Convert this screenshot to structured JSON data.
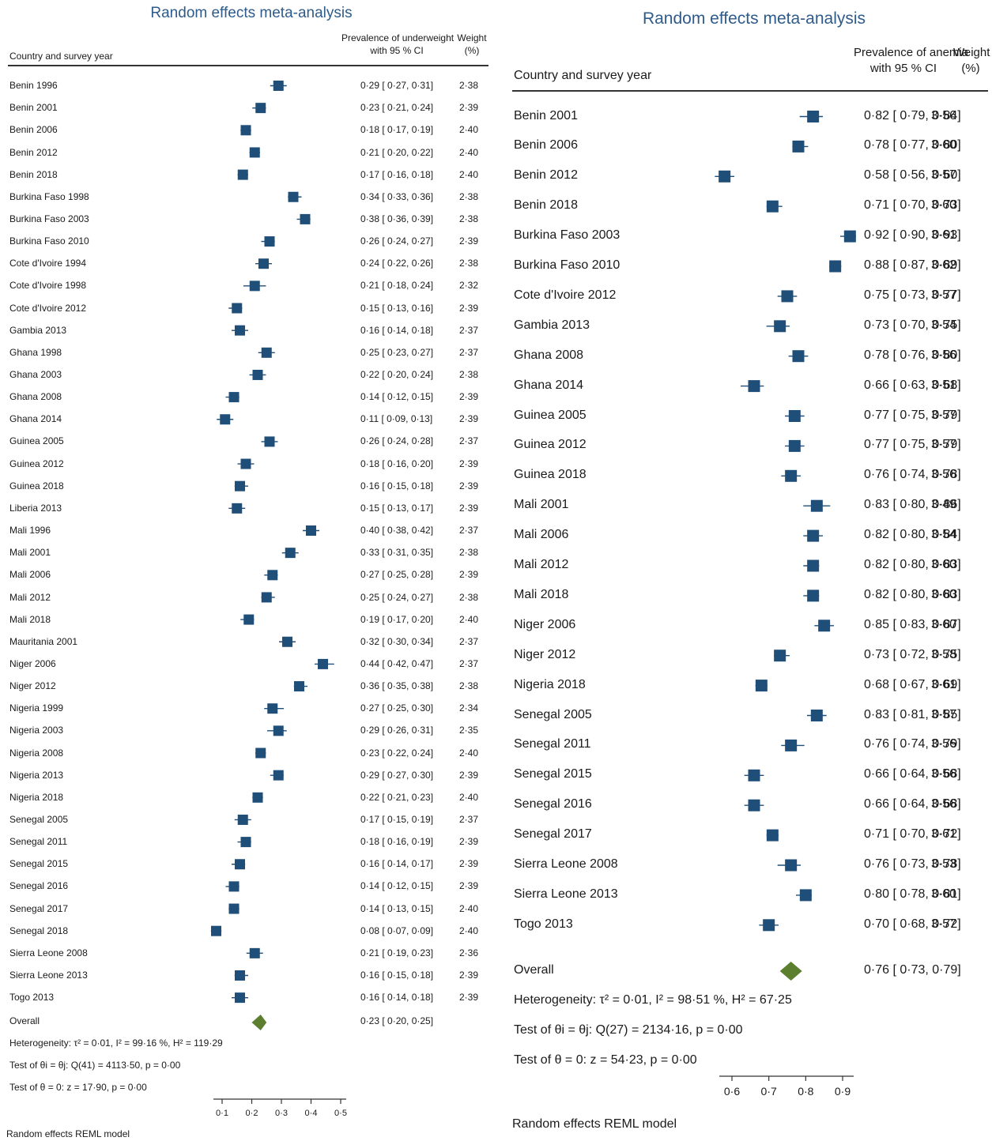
{
  "colors": {
    "marker": "#1f4e79",
    "diamond": "#5b7f2e",
    "title": "#2e5b8a",
    "text": "#1a1a1a"
  },
  "left": {
    "title": "Random effects meta-analysis",
    "col_country": "Country and survey year",
    "col_prev_1": "Prevalence of underweight",
    "col_prev_2": "with 95 % CI",
    "col_weight_1": "Weight",
    "col_weight_2": "(%)",
    "overall_label": "Overall",
    "overall_ci": "0·23 [ 0·20, 0·25]",
    "heterogeneity": "Heterogeneity: τ² = 0·01, I² = 99·16 %, H² = 119·29",
    "test1": "Test of θi = θj: Q(41) = 4113·50, p = 0·00",
    "test2": "Test of θ = 0: z = 17·90, p = 0·00",
    "model": "Random effects REML model",
    "ticks": [
      "0·1",
      "0·2",
      "0·3",
      "0·4",
      "0·5"
    ]
  },
  "right": {
    "title": "Random effects meta-analysis",
    "col_country": "Country and survey year",
    "col_prev_1": "Prevalence of anemia",
    "col_prev_2": "with 95 % CI",
    "col_weight_1": "Weight",
    "col_weight_2": "(%)",
    "overall_label": "Overall",
    "overall_ci": "0·76 [ 0·73, 0·79]",
    "heterogeneity": "Heterogeneity: τ² = 0·01, I² = 98·51 %, H² = 67·25",
    "test1": "Test of θi = θj: Q(27) = 2134·16, p = 0·00",
    "test2": "Test of θ = 0: z = 54·23, p = 0·00",
    "model": "Random effects REML model",
    "ticks": [
      "0·6",
      "0·7",
      "0·8",
      "0·9"
    ]
  },
  "chart_data": [
    {
      "type": "forest",
      "title": "Random effects meta-analysis",
      "xlabel": "",
      "ylabel": "Country and survey year",
      "xlim": [
        0.05,
        0.5
      ],
      "xticks": [
        0.1,
        0.2,
        0.3,
        0.4,
        0.5
      ],
      "studies": [
        {
          "label": "Benin 1996",
          "est": 0.29,
          "lo": 0.27,
          "hi": 0.31,
          "weight": 2.38,
          "ci_text": "0·29 [ 0·27, 0·31]",
          "weight_text": "2·38"
        },
        {
          "label": "Benin 2001",
          "est": 0.23,
          "lo": 0.21,
          "hi": 0.24,
          "weight": 2.39,
          "ci_text": "0·23 [ 0·21, 0·24]",
          "weight_text": "2·39"
        },
        {
          "label": "Benin 2006",
          "est": 0.18,
          "lo": 0.17,
          "hi": 0.19,
          "weight": 2.4,
          "ci_text": "0·18 [ 0·17, 0·19]",
          "weight_text": "2·40"
        },
        {
          "label": "Benin 2012",
          "est": 0.21,
          "lo": 0.2,
          "hi": 0.22,
          "weight": 2.4,
          "ci_text": "0·21 [ 0·20, 0·22]",
          "weight_text": "2·40"
        },
        {
          "label": "Benin 2018",
          "est": 0.17,
          "lo": 0.16,
          "hi": 0.18,
          "weight": 2.4,
          "ci_text": "0·17 [ 0·16, 0·18]",
          "weight_text": "2·40"
        },
        {
          "label": "Burkina Faso 1998",
          "est": 0.34,
          "lo": 0.33,
          "hi": 0.36,
          "weight": 2.38,
          "ci_text": "0·34 [ 0·33, 0·36]",
          "weight_text": "2·38"
        },
        {
          "label": "Burkina Faso 2003",
          "est": 0.38,
          "lo": 0.36,
          "hi": 0.39,
          "weight": 2.38,
          "ci_text": "0·38 [ 0·36, 0·39]",
          "weight_text": "2·38"
        },
        {
          "label": "Burkina Faso 2010",
          "est": 0.26,
          "lo": 0.24,
          "hi": 0.27,
          "weight": 2.39,
          "ci_text": "0·26 [ 0·24, 0·27]",
          "weight_text": "2·39"
        },
        {
          "label": "Cote d'Ivoire 1994",
          "est": 0.24,
          "lo": 0.22,
          "hi": 0.26,
          "weight": 2.38,
          "ci_text": "0·24 [ 0·22, 0·26]",
          "weight_text": "2·38"
        },
        {
          "label": "Cote d'Ivoire 1998",
          "est": 0.21,
          "lo": 0.18,
          "hi": 0.24,
          "weight": 2.32,
          "ci_text": "0·21 [ 0·18, 0·24]",
          "weight_text": "2·32"
        },
        {
          "label": "Cote d'Ivoire 2012",
          "est": 0.15,
          "lo": 0.13,
          "hi": 0.16,
          "weight": 2.39,
          "ci_text": "0·15 [ 0·13, 0·16]",
          "weight_text": "2·39"
        },
        {
          "label": "Gambia 2013",
          "est": 0.16,
          "lo": 0.14,
          "hi": 0.18,
          "weight": 2.37,
          "ci_text": "0·16 [ 0·14, 0·18]",
          "weight_text": "2·37"
        },
        {
          "label": "Ghana 1998",
          "est": 0.25,
          "lo": 0.23,
          "hi": 0.27,
          "weight": 2.37,
          "ci_text": "0·25 [ 0·23, 0·27]",
          "weight_text": "2·37"
        },
        {
          "label": "Ghana 2003",
          "est": 0.22,
          "lo": 0.2,
          "hi": 0.24,
          "weight": 2.38,
          "ci_text": "0·22 [ 0·20, 0·24]",
          "weight_text": "2·38"
        },
        {
          "label": "Ghana 2008",
          "est": 0.14,
          "lo": 0.12,
          "hi": 0.15,
          "weight": 2.39,
          "ci_text": "0·14 [ 0·12, 0·15]",
          "weight_text": "2·39"
        },
        {
          "label": "Ghana 2014",
          "est": 0.11,
          "lo": 0.09,
          "hi": 0.13,
          "weight": 2.39,
          "ci_text": "0·11 [ 0·09, 0·13]",
          "weight_text": "2·39"
        },
        {
          "label": "Guinea 2005",
          "est": 0.26,
          "lo": 0.24,
          "hi": 0.28,
          "weight": 2.37,
          "ci_text": "0·26 [ 0·24, 0·28]",
          "weight_text": "2·37"
        },
        {
          "label": "Guinea 2012",
          "est": 0.18,
          "lo": 0.16,
          "hi": 0.2,
          "weight": 2.39,
          "ci_text": "0·18 [ 0·16, 0·20]",
          "weight_text": "2·39"
        },
        {
          "label": "Guinea 2018",
          "est": 0.16,
          "lo": 0.15,
          "hi": 0.18,
          "weight": 2.39,
          "ci_text": "0·16 [ 0·15, 0·18]",
          "weight_text": "2·39"
        },
        {
          "label": "Liberia 2013",
          "est": 0.15,
          "lo": 0.13,
          "hi": 0.17,
          "weight": 2.39,
          "ci_text": "0·15 [ 0·13, 0·17]",
          "weight_text": "2·39"
        },
        {
          "label": "Mali 1996",
          "est": 0.4,
          "lo": 0.38,
          "hi": 0.42,
          "weight": 2.37,
          "ci_text": "0·40 [ 0·38, 0·42]",
          "weight_text": "2·37"
        },
        {
          "label": "Mali 2001",
          "est": 0.33,
          "lo": 0.31,
          "hi": 0.35,
          "weight": 2.38,
          "ci_text": "0·33 [ 0·31, 0·35]",
          "weight_text": "2·38"
        },
        {
          "label": "Mali 2006",
          "est": 0.27,
          "lo": 0.25,
          "hi": 0.28,
          "weight": 2.39,
          "ci_text": "0·27 [ 0·25, 0·28]",
          "weight_text": "2·39"
        },
        {
          "label": "Mali 2012",
          "est": 0.25,
          "lo": 0.24,
          "hi": 0.27,
          "weight": 2.38,
          "ci_text": "0·25 [ 0·24, 0·27]",
          "weight_text": "2·38"
        },
        {
          "label": "Mali 2018",
          "est": 0.19,
          "lo": 0.17,
          "hi": 0.2,
          "weight": 2.4,
          "ci_text": "0·19 [ 0·17, 0·20]",
          "weight_text": "2·40"
        },
        {
          "label": "Mauritania 2001",
          "est": 0.32,
          "lo": 0.3,
          "hi": 0.34,
          "weight": 2.37,
          "ci_text": "0·32 [ 0·30, 0·34]",
          "weight_text": "2·37"
        },
        {
          "label": "Niger 2006",
          "est": 0.44,
          "lo": 0.42,
          "hi": 0.47,
          "weight": 2.37,
          "ci_text": "0·44 [ 0·42, 0·47]",
          "weight_text": "2·37"
        },
        {
          "label": "Niger 2012",
          "est": 0.36,
          "lo": 0.35,
          "hi": 0.38,
          "weight": 2.38,
          "ci_text": "0·36 [ 0·35, 0·38]",
          "weight_text": "2·38"
        },
        {
          "label": "Nigeria 1999",
          "est": 0.27,
          "lo": 0.25,
          "hi": 0.3,
          "weight": 2.34,
          "ci_text": "0·27 [ 0·25, 0·30]",
          "weight_text": "2·34"
        },
        {
          "label": "Nigeria 2003",
          "est": 0.29,
          "lo": 0.26,
          "hi": 0.31,
          "weight": 2.35,
          "ci_text": "0·29 [ 0·26, 0·31]",
          "weight_text": "2·35"
        },
        {
          "label": "Nigeria 2008",
          "est": 0.23,
          "lo": 0.22,
          "hi": 0.24,
          "weight": 2.4,
          "ci_text": "0·23 [ 0·22, 0·24]",
          "weight_text": "2·40"
        },
        {
          "label": "Nigeria 2013",
          "est": 0.29,
          "lo": 0.27,
          "hi": 0.3,
          "weight": 2.39,
          "ci_text": "0·29 [ 0·27, 0·30]",
          "weight_text": "2·39"
        },
        {
          "label": "Nigeria 2018",
          "est": 0.22,
          "lo": 0.21,
          "hi": 0.23,
          "weight": 2.4,
          "ci_text": "0·22 [ 0·21, 0·23]",
          "weight_text": "2·40"
        },
        {
          "label": "Senegal 2005",
          "est": 0.17,
          "lo": 0.15,
          "hi": 0.19,
          "weight": 2.37,
          "ci_text": "0·17 [ 0·15, 0·19]",
          "weight_text": "2·37"
        },
        {
          "label": "Senegal 2011",
          "est": 0.18,
          "lo": 0.16,
          "hi": 0.19,
          "weight": 2.39,
          "ci_text": "0·18 [ 0·16, 0·19]",
          "weight_text": "2·39"
        },
        {
          "label": "Senegal 2015",
          "est": 0.16,
          "lo": 0.14,
          "hi": 0.17,
          "weight": 2.39,
          "ci_text": "0·16 [ 0·14, 0·17]",
          "weight_text": "2·39"
        },
        {
          "label": "Senegal 2016",
          "est": 0.14,
          "lo": 0.12,
          "hi": 0.15,
          "weight": 2.39,
          "ci_text": "0·14 [ 0·12, 0·15]",
          "weight_text": "2·39"
        },
        {
          "label": "Senegal 2017",
          "est": 0.14,
          "lo": 0.13,
          "hi": 0.15,
          "weight": 2.4,
          "ci_text": "0·14 [ 0·13, 0·15]",
          "weight_text": "2·40"
        },
        {
          "label": "Senegal 2018",
          "est": 0.08,
          "lo": 0.07,
          "hi": 0.09,
          "weight": 2.4,
          "ci_text": "0·08 [ 0·07, 0·09]",
          "weight_text": "2·40"
        },
        {
          "label": "Sierra Leone 2008",
          "est": 0.21,
          "lo": 0.19,
          "hi": 0.23,
          "weight": 2.36,
          "ci_text": "0·21 [ 0·19, 0·23]",
          "weight_text": "2·36"
        },
        {
          "label": "Sierra Leone 2013",
          "est": 0.16,
          "lo": 0.15,
          "hi": 0.18,
          "weight": 2.39,
          "ci_text": "0·16 [ 0·15, 0·18]",
          "weight_text": "2·39"
        },
        {
          "label": "Togo 2013",
          "est": 0.16,
          "lo": 0.14,
          "hi": 0.18,
          "weight": 2.39,
          "ci_text": "0·16 [ 0·14, 0·18]",
          "weight_text": "2·39"
        }
      ],
      "overall": {
        "est": 0.23,
        "lo": 0.2,
        "hi": 0.25
      }
    },
    {
      "type": "forest",
      "title": "Random effects meta-analysis",
      "xlabel": "",
      "ylabel": "Country and survey year",
      "xlim": [
        0.56,
        0.93
      ],
      "xticks": [
        0.6,
        0.7,
        0.8,
        0.9
      ],
      "studies": [
        {
          "label": "Benin 2001",
          "est": 0.82,
          "lo": 0.79,
          "hi": 0.84,
          "weight": 3.56,
          "ci_text": "0·82 [ 0·79, 0·84]",
          "weight_text": "3·56"
        },
        {
          "label": "Benin 2006",
          "est": 0.78,
          "lo": 0.77,
          "hi": 0.8,
          "weight": 3.6,
          "ci_text": "0·78 [ 0·77, 0·80]",
          "weight_text": "3·60"
        },
        {
          "label": "Benin 2012",
          "est": 0.58,
          "lo": 0.56,
          "hi": 0.6,
          "weight": 3.57,
          "ci_text": "0·58 [ 0·56, 0·60]",
          "weight_text": "3·57"
        },
        {
          "label": "Benin 2018",
          "est": 0.71,
          "lo": 0.7,
          "hi": 0.73,
          "weight": 3.6,
          "ci_text": "0·71 [ 0·70, 0·73]",
          "weight_text": "3·60"
        },
        {
          "label": "Burkina Faso 2003",
          "est": 0.92,
          "lo": 0.9,
          "hi": 0.93,
          "weight": 3.61,
          "ci_text": "0·92 [ 0·90, 0·93]",
          "weight_text": "3·61"
        },
        {
          "label": "Burkina Faso 2010",
          "est": 0.88,
          "lo": 0.87,
          "hi": 0.89,
          "weight": 3.62,
          "ci_text": "0·88 [ 0·87, 0·89]",
          "weight_text": "3·62"
        },
        {
          "label": "Cote d'Ivoire 2012",
          "est": 0.75,
          "lo": 0.73,
          "hi": 0.77,
          "weight": 3.57,
          "ci_text": "0·75 [ 0·73, 0·77]",
          "weight_text": "3·57"
        },
        {
          "label": "Gambia 2013",
          "est": 0.73,
          "lo": 0.7,
          "hi": 0.75,
          "weight": 3.54,
          "ci_text": "0·73 [ 0·70, 0·75]",
          "weight_text": "3·54"
        },
        {
          "label": "Ghana 2008",
          "est": 0.78,
          "lo": 0.76,
          "hi": 0.8,
          "weight": 3.56,
          "ci_text": "0·78 [ 0·76, 0·80]",
          "weight_text": "3·56"
        },
        {
          "label": "Ghana 2014",
          "est": 0.66,
          "lo": 0.63,
          "hi": 0.68,
          "weight": 3.51,
          "ci_text": "0·66 [ 0·63, 0·68]",
          "weight_text": "3·51"
        },
        {
          "label": "Guinea 2005",
          "est": 0.77,
          "lo": 0.75,
          "hi": 0.79,
          "weight": 3.57,
          "ci_text": "0·77 [ 0·75, 0·79]",
          "weight_text": "3·57"
        },
        {
          "label": "Guinea 2012",
          "est": 0.77,
          "lo": 0.75,
          "hi": 0.79,
          "weight": 3.57,
          "ci_text": "0·77 [ 0·75, 0·79]",
          "weight_text": "3·57"
        },
        {
          "label": "Guinea 2018",
          "est": 0.76,
          "lo": 0.74,
          "hi": 0.78,
          "weight": 3.56,
          "ci_text": "0·76 [ 0·74, 0·78]",
          "weight_text": "3·56"
        },
        {
          "label": "Mali 2001",
          "est": 0.83,
          "lo": 0.8,
          "hi": 0.86,
          "weight": 3.49,
          "ci_text": "0·83 [ 0·80, 0·86]",
          "weight_text": "3·49"
        },
        {
          "label": "Mali 2006",
          "est": 0.82,
          "lo": 0.8,
          "hi": 0.84,
          "weight": 3.54,
          "ci_text": "0·82 [ 0·80, 0·84]",
          "weight_text": "3·54"
        },
        {
          "label": "Mali 2012",
          "est": 0.82,
          "lo": 0.8,
          "hi": 0.83,
          "weight": 3.6,
          "ci_text": "0·82 [ 0·80, 0·83]",
          "weight_text": "3·60"
        },
        {
          "label": "Mali 2018",
          "est": 0.82,
          "lo": 0.8,
          "hi": 0.83,
          "weight": 3.6,
          "ci_text": "0·82 [ 0·80, 0·83]",
          "weight_text": "3·60"
        },
        {
          "label": "Niger 2006",
          "est": 0.85,
          "lo": 0.83,
          "hi": 0.87,
          "weight": 3.6,
          "ci_text": "0·85 [ 0·83, 0·87]",
          "weight_text": "3·60"
        },
        {
          "label": "Niger 2012",
          "est": 0.73,
          "lo": 0.72,
          "hi": 0.75,
          "weight": 3.58,
          "ci_text": "0·73 [ 0·72, 0·75]",
          "weight_text": "3·58"
        },
        {
          "label": "Nigeria 2018",
          "est": 0.68,
          "lo": 0.67,
          "hi": 0.69,
          "weight": 3.61,
          "ci_text": "0·68 [ 0·67, 0·69]",
          "weight_text": "3·61"
        },
        {
          "label": "Senegal 2005",
          "est": 0.83,
          "lo": 0.81,
          "hi": 0.85,
          "weight": 3.57,
          "ci_text": "0·83 [ 0·81, 0·85]",
          "weight_text": "3·57"
        },
        {
          "label": "Senegal 2011",
          "est": 0.76,
          "lo": 0.74,
          "hi": 0.79,
          "weight": 3.56,
          "ci_text": "0·76 [ 0·74, 0·79]",
          "weight_text": "3·56"
        },
        {
          "label": "Senegal 2015",
          "est": 0.66,
          "lo": 0.64,
          "hi": 0.68,
          "weight": 3.56,
          "ci_text": "0·66 [ 0·64, 0·68]",
          "weight_text": "3·56"
        },
        {
          "label": "Senegal 2016",
          "est": 0.66,
          "lo": 0.64,
          "hi": 0.68,
          "weight": 3.56,
          "ci_text": "0·66 [ 0·64, 0·68]",
          "weight_text": "3·56"
        },
        {
          "label": "Senegal 2017",
          "est": 0.71,
          "lo": 0.7,
          "hi": 0.72,
          "weight": 3.61,
          "ci_text": "0·71 [ 0·70, 0·72]",
          "weight_text": "3·61"
        },
        {
          "label": "Sierra Leone 2008",
          "est": 0.76,
          "lo": 0.73,
          "hi": 0.78,
          "weight": 3.53,
          "ci_text": "0·76 [ 0·73, 0·78]",
          "weight_text": "3·53"
        },
        {
          "label": "Sierra Leone 2013",
          "est": 0.8,
          "lo": 0.78,
          "hi": 0.81,
          "weight": 3.6,
          "ci_text": "0·80 [ 0·78, 0·81]",
          "weight_text": "3·60"
        },
        {
          "label": "Togo 2013",
          "est": 0.7,
          "lo": 0.68,
          "hi": 0.72,
          "weight": 3.57,
          "ci_text": "0·70 [ 0·68, 0·72]",
          "weight_text": "3·57"
        }
      ],
      "overall": {
        "est": 0.76,
        "lo": 0.73,
        "hi": 0.79
      }
    }
  ]
}
